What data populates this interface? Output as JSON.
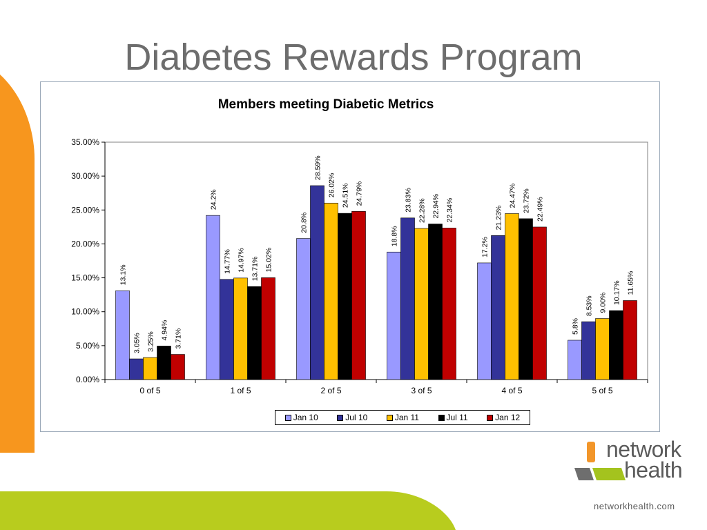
{
  "slide": {
    "title": "Diabetes Rewards Program",
    "brand_name_line1": "network",
    "brand_name_line2": "health",
    "website": "networkhealth.com"
  },
  "colors": {
    "title_gray": "#6d6d6d",
    "orange_accent": "#f7961e",
    "green_accent": "#b8cc1e",
    "logo_orange": "#f2962a",
    "logo_gray": "#6e6e6e",
    "logo_green": "#a4c31e"
  },
  "chart_data": {
    "type": "bar",
    "title": "Members meeting Diabetic Metrics",
    "xlabel": "",
    "ylabel": "",
    "categories": [
      "0 of 5",
      "1 of 5",
      "2 of 5",
      "3 of 5",
      "4 of 5",
      "5 of 5"
    ],
    "ylim": [
      0,
      35
    ],
    "yticks": [
      "0.00%",
      "5.00%",
      "10.00%",
      "15.00%",
      "20.00%",
      "25.00%",
      "30.00%",
      "35.00%"
    ],
    "grid": false,
    "legend_position": "bottom",
    "series": [
      {
        "name": "Jan 10",
        "color": "#9999ff",
        "values": [
          13.1,
          24.2,
          20.8,
          18.8,
          17.2,
          5.8
        ],
        "labels": [
          "13.1%",
          "24.2%",
          "20.8%",
          "18.8%",
          "17.2%",
          "5.8%"
        ]
      },
      {
        "name": "Jul 10",
        "color": "#333399",
        "values": [
          3.05,
          14.77,
          28.59,
          23.83,
          21.23,
          8.53
        ],
        "labels": [
          "3.05%",
          "14.77%",
          "28.59%",
          "23.83%",
          "21.23%",
          "8.53%"
        ]
      },
      {
        "name": "Jan 11",
        "color": "#ffc000",
        "values": [
          3.25,
          14.97,
          26.02,
          22.28,
          24.47,
          9.0
        ],
        "labels": [
          "3.25%",
          "14.97%",
          "26.02%",
          "22.28%",
          "24.47%",
          "9.00%"
        ]
      },
      {
        "name": "Jul 11",
        "color": "#000000",
        "values": [
          4.94,
          13.71,
          24.51,
          22.94,
          23.72,
          10.17
        ],
        "labels": [
          "4.94%",
          "13.71%",
          "24.51%",
          "22.94%",
          "23.72%",
          "10.17%"
        ]
      },
      {
        "name": "Jan 12",
        "color": "#c00000",
        "values": [
          3.71,
          15.02,
          24.79,
          22.34,
          22.49,
          11.65
        ],
        "labels": [
          "3.71%",
          "15.02%",
          "24.79%",
          "22.34%",
          "22.49%",
          "11.65%"
        ]
      }
    ]
  }
}
